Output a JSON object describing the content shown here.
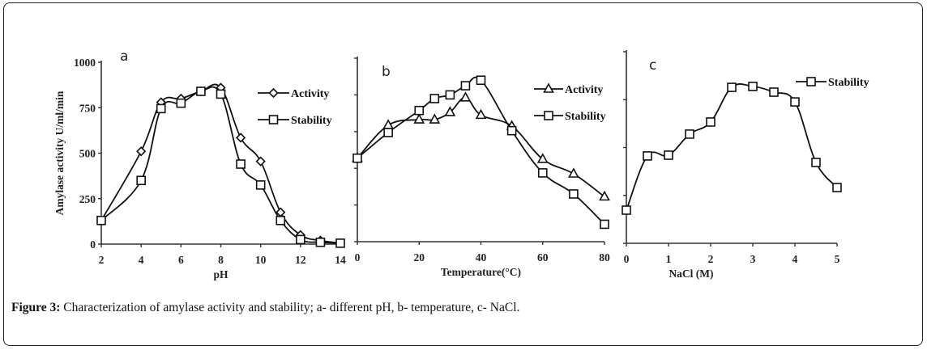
{
  "figure": {
    "caption_label": "Figure 3:",
    "caption_text": " Characterization of amylase activity and stability; a- different pH, b- temperature, c- NaCl."
  },
  "chart_data": [
    {
      "id": "a",
      "type": "line",
      "panel_letter": "a",
      "title": "",
      "xlabel": "pH",
      "ylabel": "Amylase activity U/ml/min",
      "xlim": [
        2,
        14
      ],
      "ylim": [
        0,
        1000
      ],
      "xticks": [
        2,
        4,
        6,
        8,
        10,
        12,
        14
      ],
      "yticks": [
        0,
        250,
        500,
        750,
        1000
      ],
      "show_ytick_labels": true,
      "legend_position": "top-right",
      "series": [
        {
          "name": "Activity",
          "marker": "diamond",
          "x": [
            2,
            4,
            5,
            6,
            7,
            8,
            9,
            10,
            11,
            12,
            13,
            14
          ],
          "values": [
            130,
            510,
            780,
            800,
            840,
            860,
            585,
            455,
            175,
            50,
            20,
            5
          ]
        },
        {
          "name": "Stability",
          "marker": "square",
          "x": [
            2,
            4,
            5,
            6,
            7,
            8,
            9,
            10,
            11,
            12,
            13,
            14
          ],
          "values": [
            130,
            350,
            745,
            775,
            840,
            825,
            440,
            325,
            130,
            25,
            10,
            5
          ]
        }
      ]
    },
    {
      "id": "b",
      "type": "line",
      "panel_letter": "b",
      "title": "",
      "xlabel": "Temperature(°C)",
      "ylabel": "",
      "xlim": [
        0,
        80
      ],
      "ylim": [
        0,
        1000
      ],
      "xticks": [
        0,
        20,
        40,
        60,
        80
      ],
      "yticks": [
        0,
        200,
        400,
        600,
        800,
        1000
      ],
      "show_ytick_labels": false,
      "legend_position": "top-right",
      "series": [
        {
          "name": "Activity",
          "marker": "triangle",
          "x": [
            0,
            10,
            20,
            25,
            30,
            35,
            40,
            50,
            60,
            70,
            80
          ],
          "values": [
            455,
            635,
            665,
            665,
            705,
            785,
            690,
            630,
            450,
            370,
            245
          ]
        },
        {
          "name": "Stability",
          "marker": "square",
          "x": [
            0,
            10,
            20,
            25,
            30,
            35,
            40,
            50,
            60,
            70,
            80
          ],
          "values": [
            455,
            595,
            715,
            780,
            800,
            850,
            880,
            605,
            375,
            260,
            95
          ]
        }
      ]
    },
    {
      "id": "c",
      "type": "line",
      "panel_letter": "c",
      "title": "",
      "xlabel": "NaCl (M)",
      "ylabel": "",
      "xlim": [
        0,
        5
      ],
      "ylim": [
        0,
        1000
      ],
      "xticks": [
        0,
        1,
        2,
        3,
        4,
        5
      ],
      "yticks": [
        0,
        250,
        500,
        750,
        1000
      ],
      "show_ytick_labels": false,
      "legend_position": "top-right",
      "series": [
        {
          "name": "Stability",
          "marker": "square",
          "x": [
            0,
            0.5,
            1,
            1.5,
            2,
            2.5,
            3,
            3.5,
            4,
            4.5,
            5
          ],
          "values": [
            173,
            456,
            460,
            570,
            633,
            814,
            819,
            789,
            738,
            422,
            291
          ]
        }
      ]
    }
  ]
}
